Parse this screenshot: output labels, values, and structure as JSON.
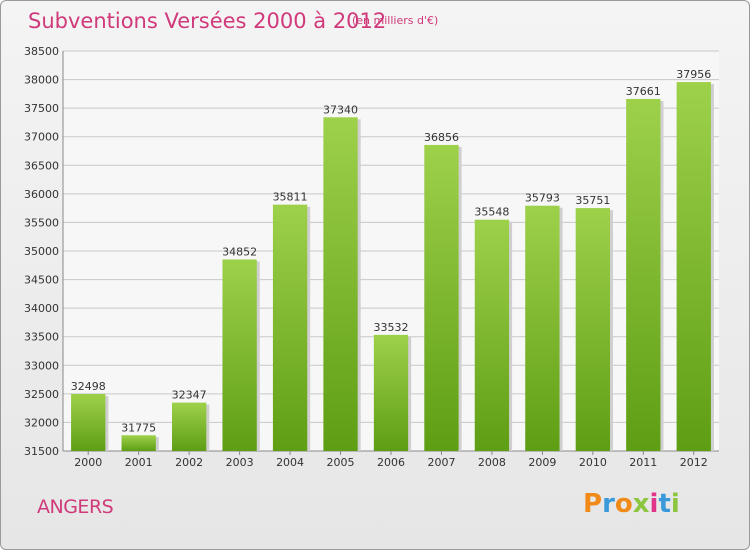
{
  "title": "Subventions Versées 2000 à 2012",
  "units": "(en milliers d'€)",
  "place": "ANGERS",
  "logo": [
    "P",
    "r",
    "o",
    "x",
    "i",
    "t",
    "i"
  ],
  "logo_colors": [
    "#f28a1a",
    "#3a9ad9",
    "#f28a1a",
    "#8cc63f",
    "#e0348a",
    "#3a9ad9",
    "#8cc63f"
  ],
  "colors": {
    "bar_top": "#9ed14a",
    "bar_bottom": "#5e9e14",
    "grid": "#c8c8c8",
    "accent": "#d0397a"
  },
  "chart_data": {
    "type": "bar",
    "categories": [
      "2000",
      "2001",
      "2002",
      "2003",
      "2004",
      "2005",
      "2006",
      "2007",
      "2008",
      "2009",
      "2010",
      "2011",
      "2012"
    ],
    "values": [
      32498,
      31775,
      32347,
      34852,
      35811,
      37340,
      33532,
      36856,
      35548,
      35793,
      35751,
      37661,
      37956
    ],
    "ylim": [
      31500,
      38500
    ],
    "yticks": [
      31500,
      32000,
      32500,
      33000,
      33500,
      34000,
      34500,
      35000,
      35500,
      36000,
      36500,
      37000,
      37500,
      38000,
      38500
    ],
    "grid": true,
    "data_labels": true
  }
}
